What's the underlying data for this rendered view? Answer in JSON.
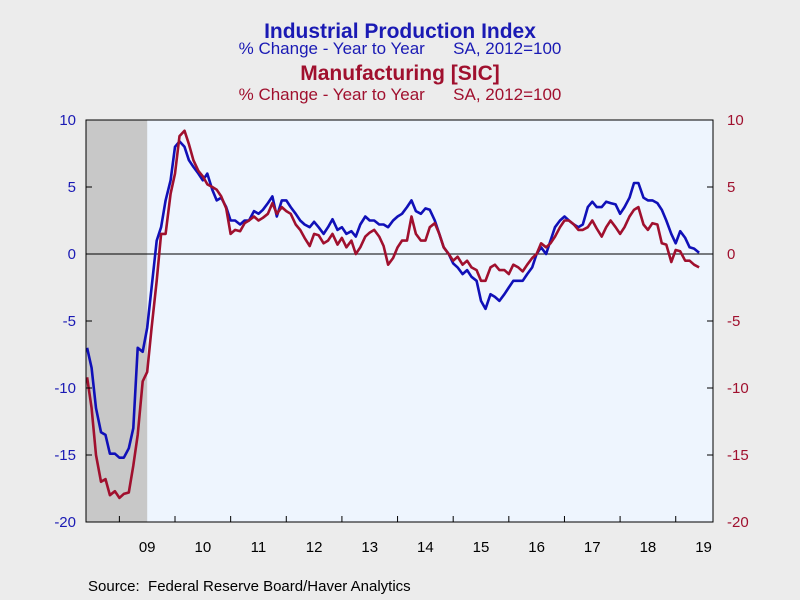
{
  "chart_data": {
    "type": "line",
    "titles": [
      {
        "text": "Industrial Production Index",
        "role": "main",
        "color": "#1a1ab4"
      },
      {
        "text": "% Change - Year to Year      SA, 2012=100",
        "role": "sub",
        "color": "#1a1ab4"
      },
      {
        "text": "Manufacturing [SIC]",
        "role": "main",
        "color": "#a0102e"
      },
      {
        "text": "% Change - Year to Year      SA, 2012=100",
        "role": "sub",
        "color": "#a0102e"
      }
    ],
    "source": "Source:  Federal Reserve Board/Haver Analytics",
    "x_range": [
      2008.4,
      2019.67
    ],
    "x_ticks": [
      {
        "label": "09",
        "year": 2009
      },
      {
        "label": "10",
        "year": 2010
      },
      {
        "label": "11",
        "year": 2011
      },
      {
        "label": "12",
        "year": 2012
      },
      {
        "label": "13",
        "year": 2013
      },
      {
        "label": "14",
        "year": 2014
      },
      {
        "label": "15",
        "year": 2015
      },
      {
        "label": "16",
        "year": 2016
      },
      {
        "label": "17",
        "year": 2017
      },
      {
        "label": "18",
        "year": 2018
      },
      {
        "label": "19",
        "year": 2019
      }
    ],
    "y_left": {
      "range": [
        -20,
        10
      ],
      "ticks": [
        10,
        5,
        0,
        -5,
        -10,
        -15,
        -20
      ],
      "color": "#1a1ab4"
    },
    "y_right": {
      "range": [
        -20,
        10
      ],
      "ticks": [
        10,
        5,
        0,
        -5,
        -10,
        -15,
        -20
      ],
      "color": "#a0102e"
    },
    "zero_line": true,
    "grid": false,
    "recession_shading": [
      {
        "start": 2008.4,
        "end": 2009.5
      }
    ],
    "colors": {
      "plot_bg": "#eef5fe",
      "frame_bg": "#ececec",
      "recession": "#c8c8c8"
    },
    "series": [
      {
        "name": "Industrial Production Index",
        "color": "#1010b8",
        "axis": "left",
        "points": [
          [
            2008.42,
            -7.0
          ],
          [
            2008.5,
            -8.5
          ],
          [
            2008.58,
            -11.5
          ],
          [
            2008.67,
            -13.3
          ],
          [
            2008.75,
            -13.5
          ],
          [
            2008.83,
            -14.9
          ],
          [
            2008.92,
            -14.9
          ],
          [
            2009.0,
            -15.2
          ],
          [
            2009.08,
            -15.2
          ],
          [
            2009.17,
            -14.5
          ],
          [
            2009.25,
            -13.0
          ],
          [
            2009.33,
            -7.0
          ],
          [
            2009.42,
            -7.3
          ],
          [
            2009.5,
            -5.5
          ],
          [
            2009.58,
            -2.5
          ],
          [
            2009.67,
            1.0
          ],
          [
            2009.75,
            2.0
          ],
          [
            2009.83,
            4.0
          ],
          [
            2009.92,
            5.5
          ],
          [
            2010.0,
            8.0
          ],
          [
            2010.08,
            8.4
          ],
          [
            2010.17,
            8.0
          ],
          [
            2010.25,
            7.0
          ],
          [
            2010.33,
            6.5
          ],
          [
            2010.42,
            6.0
          ],
          [
            2010.5,
            5.5
          ],
          [
            2010.58,
            6.0
          ],
          [
            2010.67,
            4.8
          ],
          [
            2010.75,
            4.0
          ],
          [
            2010.83,
            4.2
          ],
          [
            2010.92,
            3.5
          ],
          [
            2011.0,
            2.5
          ],
          [
            2011.08,
            2.5
          ],
          [
            2011.17,
            2.2
          ],
          [
            2011.25,
            2.5
          ],
          [
            2011.33,
            2.5
          ],
          [
            2011.42,
            3.2
          ],
          [
            2011.5,
            3.0
          ],
          [
            2011.58,
            3.3
          ],
          [
            2011.67,
            3.8
          ],
          [
            2011.75,
            4.3
          ],
          [
            2011.83,
            2.8
          ],
          [
            2011.92,
            4.0
          ],
          [
            2012.0,
            4.0
          ],
          [
            2012.08,
            3.5
          ],
          [
            2012.17,
            3.0
          ],
          [
            2012.25,
            2.5
          ],
          [
            2012.33,
            2.2
          ],
          [
            2012.42,
            2.0
          ],
          [
            2012.5,
            2.4
          ],
          [
            2012.58,
            2.0
          ],
          [
            2012.67,
            1.5
          ],
          [
            2012.75,
            2.0
          ],
          [
            2012.83,
            2.6
          ],
          [
            2012.92,
            1.8
          ],
          [
            2013.0,
            2.0
          ],
          [
            2013.08,
            1.5
          ],
          [
            2013.17,
            1.7
          ],
          [
            2013.25,
            1.3
          ],
          [
            2013.33,
            2.2
          ],
          [
            2013.42,
            2.8
          ],
          [
            2013.5,
            2.5
          ],
          [
            2013.58,
            2.5
          ],
          [
            2013.67,
            2.2
          ],
          [
            2013.75,
            2.2
          ],
          [
            2013.83,
            2.0
          ],
          [
            2013.92,
            2.5
          ],
          [
            2014.0,
            2.8
          ],
          [
            2014.08,
            3.0
          ],
          [
            2014.17,
            3.5
          ],
          [
            2014.25,
            4.0
          ],
          [
            2014.33,
            3.2
          ],
          [
            2014.42,
            3.0
          ],
          [
            2014.5,
            3.4
          ],
          [
            2014.58,
            3.3
          ],
          [
            2014.67,
            2.5
          ],
          [
            2014.75,
            1.5
          ],
          [
            2014.83,
            0.5
          ],
          [
            2014.92,
            0.0
          ],
          [
            2015.0,
            -0.7
          ],
          [
            2015.08,
            -1.0
          ],
          [
            2015.17,
            -1.5
          ],
          [
            2015.25,
            -1.2
          ],
          [
            2015.33,
            -1.7
          ],
          [
            2015.42,
            -2.0
          ],
          [
            2015.5,
            -3.5
          ],
          [
            2015.58,
            -4.1
          ],
          [
            2015.67,
            -3.0
          ],
          [
            2015.75,
            -3.2
          ],
          [
            2015.83,
            -3.5
          ],
          [
            2015.92,
            -3.0
          ],
          [
            2016.0,
            -2.5
          ],
          [
            2016.08,
            -2.0
          ],
          [
            2016.17,
            -2.0
          ],
          [
            2016.25,
            -2.0
          ],
          [
            2016.33,
            -1.5
          ],
          [
            2016.42,
            -1.0
          ],
          [
            2016.5,
            0.0
          ],
          [
            2016.58,
            0.5
          ],
          [
            2016.67,
            0.0
          ],
          [
            2016.75,
            1.0
          ],
          [
            2016.83,
            2.0
          ],
          [
            2016.92,
            2.5
          ],
          [
            2017.0,
            2.8
          ],
          [
            2017.08,
            2.5
          ],
          [
            2017.17,
            2.2
          ],
          [
            2017.25,
            2.0
          ],
          [
            2017.33,
            2.2
          ],
          [
            2017.42,
            3.5
          ],
          [
            2017.5,
            3.9
          ],
          [
            2017.58,
            3.5
          ],
          [
            2017.67,
            3.5
          ],
          [
            2017.75,
            3.9
          ],
          [
            2017.83,
            3.8
          ],
          [
            2017.92,
            3.7
          ],
          [
            2018.0,
            3.0
          ],
          [
            2018.08,
            3.5
          ],
          [
            2018.17,
            4.2
          ],
          [
            2018.25,
            5.3
          ],
          [
            2018.33,
            5.3
          ],
          [
            2018.42,
            4.2
          ],
          [
            2018.5,
            4.0
          ],
          [
            2018.58,
            4.0
          ],
          [
            2018.67,
            3.8
          ],
          [
            2018.75,
            3.3
          ],
          [
            2018.83,
            2.5
          ],
          [
            2018.92,
            1.5
          ],
          [
            2019.0,
            0.8
          ],
          [
            2019.08,
            1.7
          ],
          [
            2019.17,
            1.2
          ],
          [
            2019.25,
            0.5
          ],
          [
            2019.33,
            0.4
          ],
          [
            2019.42,
            0.1
          ]
        ]
      },
      {
        "name": "Manufacturing [SIC]",
        "color": "#a0102e",
        "axis": "right",
        "points": [
          [
            2008.42,
            -9.2
          ],
          [
            2008.5,
            -11.5
          ],
          [
            2008.58,
            -15.0
          ],
          [
            2008.67,
            -17.0
          ],
          [
            2008.75,
            -16.8
          ],
          [
            2008.83,
            -18.0
          ],
          [
            2008.92,
            -17.7
          ],
          [
            2009.0,
            -18.2
          ],
          [
            2009.08,
            -17.9
          ],
          [
            2009.17,
            -17.8
          ],
          [
            2009.25,
            -15.8
          ],
          [
            2009.33,
            -13.5
          ],
          [
            2009.42,
            -9.5
          ],
          [
            2009.5,
            -8.8
          ],
          [
            2009.58,
            -5.5
          ],
          [
            2009.67,
            -2.0
          ],
          [
            2009.75,
            1.5
          ],
          [
            2009.83,
            1.5
          ],
          [
            2009.92,
            4.5
          ],
          [
            2010.0,
            6.0
          ],
          [
            2010.08,
            8.8
          ],
          [
            2010.17,
            9.2
          ],
          [
            2010.25,
            8.2
          ],
          [
            2010.33,
            7.0
          ],
          [
            2010.42,
            6.2
          ],
          [
            2010.5,
            5.8
          ],
          [
            2010.58,
            5.2
          ],
          [
            2010.67,
            5.0
          ],
          [
            2010.75,
            4.8
          ],
          [
            2010.83,
            4.3
          ],
          [
            2010.92,
            3.4
          ],
          [
            2011.0,
            1.5
          ],
          [
            2011.08,
            1.8
          ],
          [
            2011.17,
            1.7
          ],
          [
            2011.25,
            2.3
          ],
          [
            2011.33,
            2.5
          ],
          [
            2011.42,
            2.8
          ],
          [
            2011.5,
            2.5
          ],
          [
            2011.58,
            2.7
          ],
          [
            2011.67,
            3.0
          ],
          [
            2011.75,
            3.8
          ],
          [
            2011.83,
            3.0
          ],
          [
            2011.92,
            3.5
          ],
          [
            2012.0,
            3.2
          ],
          [
            2012.08,
            3.0
          ],
          [
            2012.17,
            2.2
          ],
          [
            2012.25,
            1.8
          ],
          [
            2012.33,
            1.2
          ],
          [
            2012.42,
            0.6
          ],
          [
            2012.5,
            1.5
          ],
          [
            2012.58,
            1.4
          ],
          [
            2012.67,
            0.8
          ],
          [
            2012.75,
            1.0
          ],
          [
            2012.83,
            1.5
          ],
          [
            2012.92,
            0.7
          ],
          [
            2013.0,
            1.2
          ],
          [
            2013.08,
            0.5
          ],
          [
            2013.17,
            1.0
          ],
          [
            2013.25,
            0.0
          ],
          [
            2013.33,
            0.5
          ],
          [
            2013.42,
            1.3
          ],
          [
            2013.5,
            1.6
          ],
          [
            2013.58,
            1.8
          ],
          [
            2013.67,
            1.3
          ],
          [
            2013.75,
            0.6
          ],
          [
            2013.83,
            -0.8
          ],
          [
            2013.92,
            -0.3
          ],
          [
            2014.0,
            0.5
          ],
          [
            2014.08,
            1.0
          ],
          [
            2014.17,
            1.0
          ],
          [
            2014.25,
            2.8
          ],
          [
            2014.33,
            1.5
          ],
          [
            2014.42,
            1.0
          ],
          [
            2014.5,
            1.0
          ],
          [
            2014.58,
            2.0
          ],
          [
            2014.67,
            2.3
          ],
          [
            2014.75,
            1.5
          ],
          [
            2014.83,
            0.5
          ],
          [
            2014.92,
            0.0
          ],
          [
            2015.0,
            -0.5
          ],
          [
            2015.08,
            -0.2
          ],
          [
            2015.17,
            -0.8
          ],
          [
            2015.25,
            -0.5
          ],
          [
            2015.33,
            -1.0
          ],
          [
            2015.42,
            -1.2
          ],
          [
            2015.5,
            -2.0
          ],
          [
            2015.58,
            -2.0
          ],
          [
            2015.67,
            -1.0
          ],
          [
            2015.75,
            -0.8
          ],
          [
            2015.83,
            -1.2
          ],
          [
            2015.92,
            -1.2
          ],
          [
            2016.0,
            -1.5
          ],
          [
            2016.08,
            -0.8
          ],
          [
            2016.17,
            -1.0
          ],
          [
            2016.25,
            -1.3
          ],
          [
            2016.33,
            -0.8
          ],
          [
            2016.42,
            -0.3
          ],
          [
            2016.5,
            0.0
          ],
          [
            2016.58,
            0.8
          ],
          [
            2016.67,
            0.5
          ],
          [
            2016.75,
            0.8
          ],
          [
            2016.83,
            1.3
          ],
          [
            2016.92,
            2.0
          ],
          [
            2017.0,
            2.5
          ],
          [
            2017.08,
            2.5
          ],
          [
            2017.17,
            2.2
          ],
          [
            2017.25,
            1.8
          ],
          [
            2017.33,
            1.8
          ],
          [
            2017.42,
            2.0
          ],
          [
            2017.5,
            2.5
          ],
          [
            2017.58,
            1.9
          ],
          [
            2017.67,
            1.3
          ],
          [
            2017.75,
            2.0
          ],
          [
            2017.83,
            2.5
          ],
          [
            2017.92,
            2.0
          ],
          [
            2018.0,
            1.5
          ],
          [
            2018.08,
            2.0
          ],
          [
            2018.17,
            2.8
          ],
          [
            2018.25,
            3.3
          ],
          [
            2018.33,
            3.5
          ],
          [
            2018.42,
            2.2
          ],
          [
            2018.5,
            1.8
          ],
          [
            2018.58,
            2.3
          ],
          [
            2018.67,
            2.2
          ],
          [
            2018.75,
            0.8
          ],
          [
            2018.83,
            0.7
          ],
          [
            2018.92,
            -0.6
          ],
          [
            2019.0,
            0.3
          ],
          [
            2019.08,
            0.2
          ],
          [
            2019.17,
            -0.5
          ],
          [
            2019.25,
            -0.5
          ],
          [
            2019.33,
            -0.8
          ],
          [
            2019.42,
            -1.0
          ]
        ]
      }
    ]
  }
}
